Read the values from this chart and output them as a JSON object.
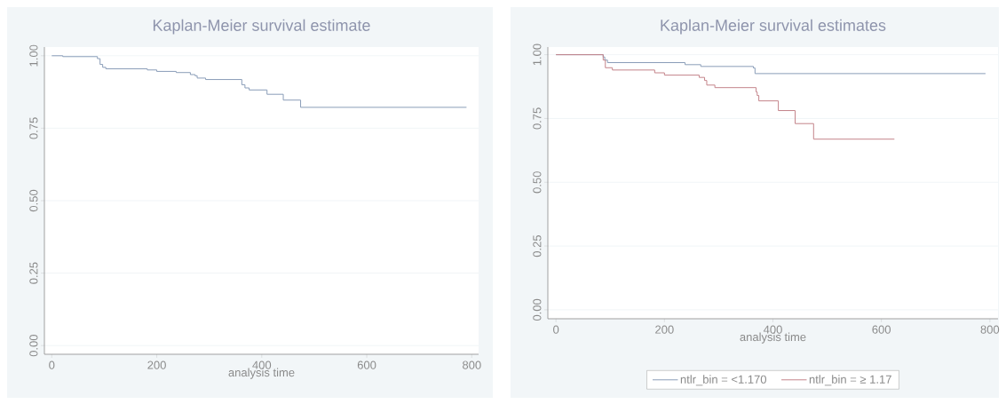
{
  "chart_data": [
    {
      "type": "step",
      "title": "Kaplan-Meier survival estimate",
      "xlabel": "analysis time",
      "color": "#8a9db8",
      "x": [
        0,
        21,
        87,
        92,
        97,
        103,
        182,
        200,
        237,
        264,
        273,
        277,
        293,
        362,
        368,
        376,
        410,
        441,
        474,
        790
      ],
      "values": [
        1.0,
        0.997,
        0.99,
        0.97,
        0.96,
        0.955,
        0.951,
        0.946,
        0.942,
        0.935,
        0.931,
        0.923,
        0.918,
        0.9,
        0.889,
        0.882,
        0.867,
        0.847,
        0.822,
        0.822
      ],
      "xlim": [
        -14,
        813
      ],
      "ylim": [
        -0.03,
        1.03
      ],
      "xticks": [
        0,
        200,
        400,
        600,
        800
      ],
      "yticks": [
        {
          "value": 0,
          "label": "0.00"
        },
        {
          "value": 0.25,
          "label": "0.25"
        },
        {
          "value": 0.5,
          "label": "0.50"
        },
        {
          "value": 0.75,
          "label": "0.75"
        },
        {
          "value": 1,
          "label": "1.00"
        }
      ],
      "grid": "y"
    },
    {
      "type": "step",
      "title": "Kaplan-Meier survival estimates",
      "xlabel": "analysis time",
      "legend": "bottom",
      "series": [
        {
          "name": "ntlr_bin = <1.170",
          "color": "#8a9db8",
          "x": [
            0,
            87,
            90,
            95,
            238,
            267,
            364,
            367,
            792
          ],
          "values": [
            1.0,
            0.991,
            0.979,
            0.969,
            0.961,
            0.954,
            0.948,
            0.926,
            0.926
          ]
        },
        {
          "name": "ntlr_bin = ≥ 1.17",
          "color": "#c4848a",
          "x": [
            0,
            87,
            91,
            104,
            182,
            200,
            264,
            274,
            278,
            293,
            369,
            371,
            374,
            410,
            441,
            475,
            624
          ],
          "values": [
            1.0,
            0.979,
            0.949,
            0.94,
            0.929,
            0.92,
            0.911,
            0.899,
            0.881,
            0.871,
            0.854,
            0.84,
            0.819,
            0.781,
            0.73,
            0.669,
            0.669
          ]
        }
      ],
      "xlim": [
        -15,
        815
      ],
      "ylim": [
        -0.035,
        1.03
      ],
      "xticks": [
        0,
        200,
        400,
        600,
        800
      ],
      "yticks": [
        {
          "value": 0,
          "label": "0.00"
        },
        {
          "value": 0.25,
          "label": "0.25"
        },
        {
          "value": 0.5,
          "label": "0.50"
        },
        {
          "value": 0.75,
          "label": "0.75"
        },
        {
          "value": 1,
          "label": "1.00"
        }
      ],
      "grid": "y"
    }
  ]
}
